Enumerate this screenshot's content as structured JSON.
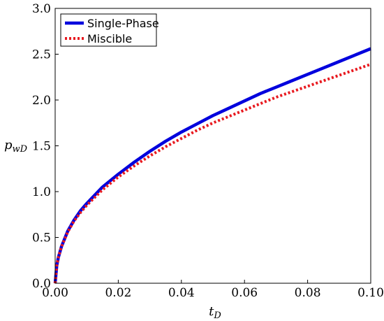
{
  "chart_data": {
    "type": "line",
    "xlabel": {
      "main": "t",
      "sub": "D"
    },
    "ylabel": {
      "main": "p",
      "sub": "wD"
    },
    "xlim": [
      0,
      0.1
    ],
    "ylim": [
      0,
      3.0
    ],
    "xticks": [
      "0.00",
      "0.02",
      "0.04",
      "0.06",
      "0.08",
      "0.10"
    ],
    "yticks": [
      "0.0",
      "0.5",
      "1.0",
      "1.5",
      "2.0",
      "2.5",
      "3.0"
    ],
    "legend_position": "top-left",
    "grid": false,
    "series": [
      {
        "name": "Single-Phase",
        "color": "#0000dd",
        "style": "solid",
        "x": [
          0,
          0.0005,
          0.001,
          0.002,
          0.004,
          0.006,
          0.008,
          0.01,
          0.015,
          0.02,
          0.025,
          0.03,
          0.035,
          0.04,
          0.045,
          0.05,
          0.055,
          0.06,
          0.065,
          0.07,
          0.075,
          0.08,
          0.085,
          0.09,
          0.095,
          0.1
        ],
        "values": [
          0,
          0.19,
          0.28,
          0.4,
          0.57,
          0.69,
          0.79,
          0.87,
          1.05,
          1.19,
          1.32,
          1.44,
          1.55,
          1.65,
          1.74,
          1.83,
          1.91,
          1.99,
          2.07,
          2.14,
          2.21,
          2.28,
          2.35,
          2.42,
          2.49,
          2.56
        ]
      },
      {
        "name": "Miscible",
        "color": "#e8191f",
        "style": "dotted",
        "x": [
          0,
          0.0005,
          0.001,
          0.002,
          0.004,
          0.006,
          0.008,
          0.01,
          0.015,
          0.02,
          0.025,
          0.03,
          0.035,
          0.04,
          0.045,
          0.05,
          0.055,
          0.06,
          0.065,
          0.07,
          0.075,
          0.08,
          0.085,
          0.09,
          0.095,
          0.1
        ],
        "values": [
          0,
          0.19,
          0.28,
          0.4,
          0.56,
          0.68,
          0.77,
          0.85,
          1.02,
          1.16,
          1.28,
          1.39,
          1.49,
          1.58,
          1.67,
          1.75,
          1.82,
          1.89,
          1.96,
          2.03,
          2.09,
          2.15,
          2.21,
          2.27,
          2.33,
          2.39
        ]
      }
    ]
  }
}
